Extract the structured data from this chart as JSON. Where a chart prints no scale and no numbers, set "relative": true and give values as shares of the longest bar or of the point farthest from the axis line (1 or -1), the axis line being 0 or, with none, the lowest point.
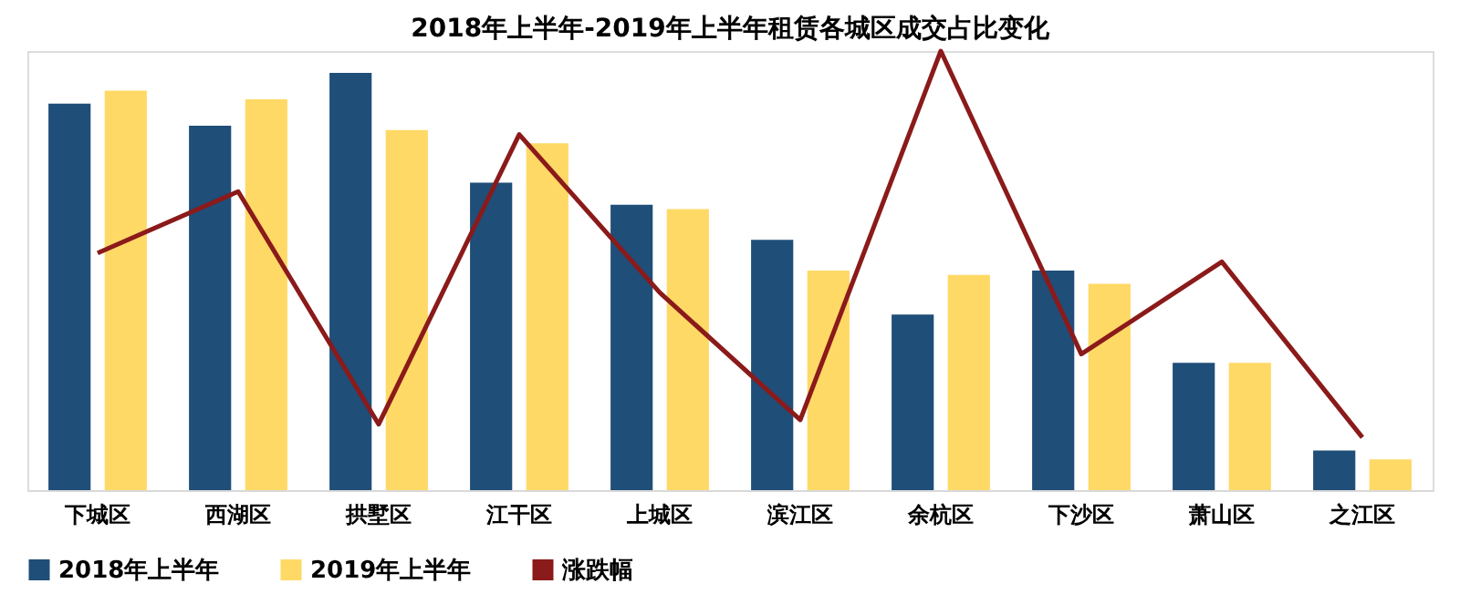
{
  "chart_data": {
    "type": "bar",
    "title": "2018年上半年-2019年上半年租赁各城区成交占比变化",
    "relative": true,
    "legend": "bottom",
    "grid": false,
    "categories": [
      "下城区",
      "西湖区",
      "拱墅区",
      "江干区",
      "上城区",
      "滨江区",
      "余杭区",
      "下沙区",
      "萧山区",
      "之江区"
    ],
    "series": [
      {
        "name": "2018年上半年",
        "color": "#1f4e79",
        "values": [
          0.88,
          0.83,
          0.95,
          0.7,
          0.65,
          0.57,
          0.4,
          0.5,
          0.29,
          0.09
        ]
      },
      {
        "name": "2019年上半年",
        "color": "#ffd966",
        "values": [
          0.91,
          0.89,
          0.82,
          0.79,
          0.64,
          0.5,
          0.49,
          0.47,
          0.29,
          0.07
        ]
      },
      {
        "name": "涨跌幅",
        "type": "line",
        "color": "#8b1a1a",
        "values": [
          0.54,
          0.68,
          0.15,
          0.81,
          0.45,
          0.16,
          1.0,
          0.31,
          0.52,
          0.12
        ]
      }
    ]
  }
}
